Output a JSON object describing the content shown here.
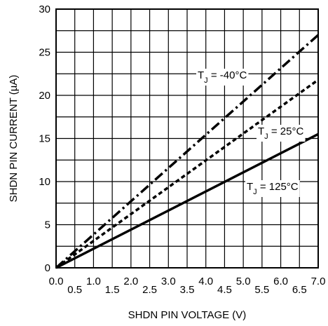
{
  "chart_data": {
    "type": "line",
    "xlabel": "SHDN PIN VOLTAGE (V)",
    "ylabel": "SHDN PIN CURRENT (µA)",
    "xlim": [
      0,
      7
    ],
    "ylim": [
      0,
      30
    ],
    "x_ticks_lower": [
      "0.0",
      "1.0",
      "2.0",
      "3.0",
      "4.0",
      "5.0",
      "6.0",
      "7.0"
    ],
    "x_ticks_upper": [
      "0.5",
      "1.5",
      "2.5",
      "3.5",
      "4.5",
      "5.5",
      "6.5"
    ],
    "y_ticks": [
      "0",
      "5",
      "10",
      "15",
      "20",
      "25",
      "30"
    ],
    "grid": true,
    "series": [
      {
        "name": "TJ = -40°C",
        "label_main": "T",
        "label_sub": "J",
        "label_rest": " = -40°C",
        "style": "dash-dot",
        "x": [
          0,
          7
        ],
        "y": [
          0,
          27.0
        ]
      },
      {
        "name": "TJ = 25°C",
        "label_main": "T",
        "label_sub": "J",
        "label_rest": " = 25°C",
        "style": "dashed",
        "x": [
          0,
          7
        ],
        "y": [
          0,
          21.8
        ]
      },
      {
        "name": "TJ = 125°C",
        "label_main": "T",
        "label_sub": "J",
        "label_rest": " = 125°C",
        "style": "solid",
        "x": [
          0,
          7
        ],
        "y": [
          0,
          15.5
        ]
      }
    ]
  }
}
